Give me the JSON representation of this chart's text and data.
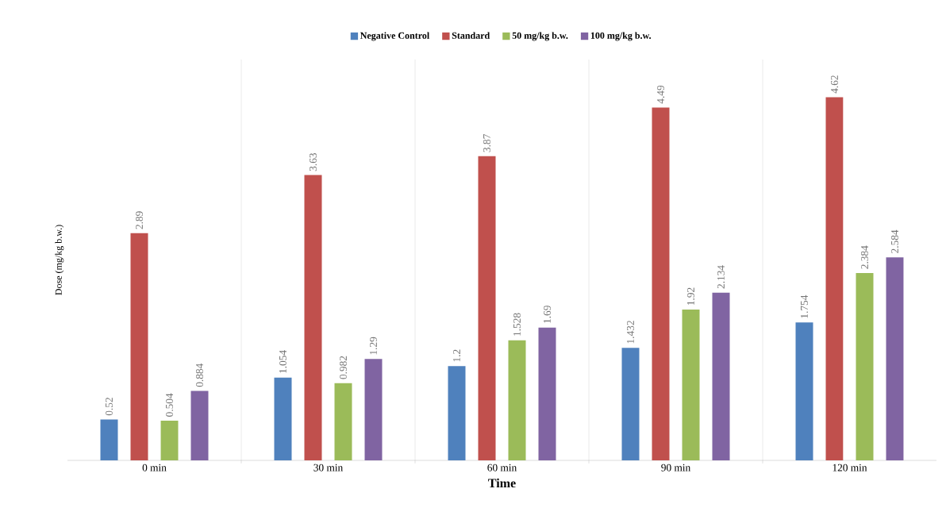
{
  "chart_data": {
    "type": "bar",
    "xlabel": "Time",
    "ylabel": "Dose (mg/kg b.w.)",
    "categories": [
      "0 min",
      "30 min",
      "60 min",
      "90 min",
      "120 min"
    ],
    "series": [
      {
        "name": "Negative Control",
        "color": "#4f81bd",
        "values": [
          0.52,
          1.054,
          1.2,
          1.432,
          1.754
        ]
      },
      {
        "name": "Standard",
        "color": "#c0504d",
        "values": [
          2.89,
          3.63,
          3.87,
          4.49,
          4.62
        ]
      },
      {
        "name": "50 mg/kg b.w.",
        "color": "#9bbb59",
        "values": [
          0.504,
          0.982,
          1.528,
          1.92,
          2.384
        ]
      },
      {
        "name": "100 mg/kg b.w.",
        "color": "#8064a2",
        "values": [
          0.884,
          1.29,
          1.69,
          2.134,
          2.584
        ]
      }
    ],
    "ylim": [
      0,
      5.1
    ],
    "data_labels": true,
    "grid": "x",
    "legend": "top"
  }
}
